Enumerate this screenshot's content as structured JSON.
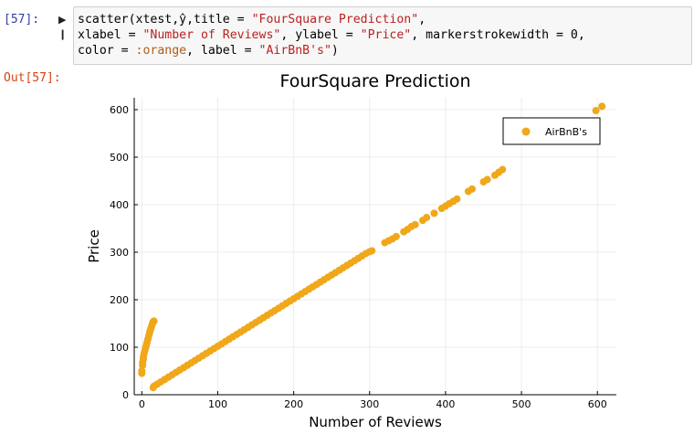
{
  "notebook": {
    "in_prompt": "[57]:",
    "out_prompt": "Out[57]:",
    "code_lines": [
      [
        {
          "t": "scatter(xtest,ŷ,title = ",
          "c": ""
        },
        {
          "t": "\"FourSquare Prediction\"",
          "c": "str"
        },
        {
          "t": ",",
          "c": ""
        }
      ],
      [
        {
          "t": "xlabel = ",
          "c": ""
        },
        {
          "t": "\"Number of Reviews\"",
          "c": "str"
        },
        {
          "t": ", ylabel = ",
          "c": ""
        },
        {
          "t": "\"Price\"",
          "c": "str"
        },
        {
          "t": ", markerstrokewidth = 0,",
          "c": ""
        }
      ],
      [
        {
          "t": "color = ",
          "c": ""
        },
        {
          "t": ":orange",
          "c": "sym"
        },
        {
          "t": ", label = ",
          "c": ""
        },
        {
          "t": "\"AirBnB's\"",
          "c": "str"
        },
        {
          "t": ")",
          "c": ""
        }
      ]
    ]
  },
  "colors": {
    "marker": "#f0a71a",
    "axis": "#000000",
    "grid": "#ececec"
  },
  "chart_data": {
    "type": "scatter",
    "title": "FourSquare Prediction",
    "xlabel": "Number of Reviews",
    "ylabel": "Price",
    "xlim": [
      -10,
      625
    ],
    "ylim": [
      0,
      625
    ],
    "xticks": [
      0,
      100,
      200,
      300,
      400,
      500,
      600
    ],
    "yticks": [
      0,
      100,
      200,
      300,
      400,
      500,
      600
    ],
    "legend_position": "top-right",
    "grid": true,
    "series": [
      {
        "name": "AirBnB's",
        "points": [
          [
            0,
            45
          ],
          [
            0,
            50
          ],
          [
            1,
            62
          ],
          [
            1,
            68
          ],
          [
            2,
            75
          ],
          [
            2,
            80
          ],
          [
            3,
            87
          ],
          [
            4,
            93
          ],
          [
            5,
            99
          ],
          [
            6,
            105
          ],
          [
            7,
            111
          ],
          [
            8,
            117
          ],
          [
            9,
            123
          ],
          [
            10,
            129
          ],
          [
            11,
            135
          ],
          [
            12,
            140
          ],
          [
            13,
            145
          ],
          [
            14,
            150
          ],
          [
            15,
            154
          ],
          [
            16,
            155
          ],
          [
            15,
            15
          ],
          [
            16,
            18
          ],
          [
            20,
            22
          ],
          [
            25,
            27
          ],
          [
            30,
            32
          ],
          [
            35,
            37
          ],
          [
            40,
            42
          ],
          [
            45,
            47
          ],
          [
            50,
            52
          ],
          [
            55,
            57
          ],
          [
            60,
            62
          ],
          [
            65,
            67
          ],
          [
            70,
            72
          ],
          [
            75,
            77
          ],
          [
            80,
            82
          ],
          [
            85,
            87
          ],
          [
            90,
            92
          ],
          [
            95,
            97
          ],
          [
            100,
            102
          ],
          [
            105,
            107
          ],
          [
            110,
            112
          ],
          [
            115,
            117
          ],
          [
            120,
            122
          ],
          [
            125,
            127
          ],
          [
            130,
            132
          ],
          [
            135,
            137
          ],
          [
            140,
            142
          ],
          [
            145,
            147
          ],
          [
            150,
            152
          ],
          [
            155,
            157
          ],
          [
            160,
            162
          ],
          [
            165,
            167
          ],
          [
            170,
            172
          ],
          [
            175,
            177
          ],
          [
            180,
            182
          ],
          [
            185,
            187
          ],
          [
            190,
            192
          ],
          [
            195,
            197
          ],
          [
            200,
            202
          ],
          [
            205,
            207
          ],
          [
            210,
            212
          ],
          [
            215,
            217
          ],
          [
            220,
            222
          ],
          [
            225,
            227
          ],
          [
            230,
            232
          ],
          [
            235,
            237
          ],
          [
            240,
            242
          ],
          [
            245,
            247
          ],
          [
            250,
            252
          ],
          [
            255,
            257
          ],
          [
            260,
            262
          ],
          [
            265,
            267
          ],
          [
            270,
            272
          ],
          [
            275,
            277
          ],
          [
            280,
            282
          ],
          [
            285,
            287
          ],
          [
            290,
            292
          ],
          [
            295,
            297
          ],
          [
            300,
            301
          ],
          [
            303,
            303
          ],
          [
            320,
            320
          ],
          [
            325,
            324
          ],
          [
            330,
            328
          ],
          [
            335,
            333
          ],
          [
            345,
            343
          ],
          [
            350,
            348
          ],
          [
            355,
            354
          ],
          [
            360,
            358
          ],
          [
            370,
            367
          ],
          [
            375,
            373
          ],
          [
            385,
            382
          ],
          [
            395,
            392
          ],
          [
            400,
            397
          ],
          [
            405,
            402
          ],
          [
            410,
            407
          ],
          [
            415,
            412
          ],
          [
            430,
            428
          ],
          [
            435,
            433
          ],
          [
            450,
            448
          ],
          [
            455,
            453
          ],
          [
            465,
            462
          ],
          [
            470,
            468
          ],
          [
            475,
            474
          ],
          [
            598,
            598
          ],
          [
            606,
            607
          ]
        ]
      }
    ]
  }
}
